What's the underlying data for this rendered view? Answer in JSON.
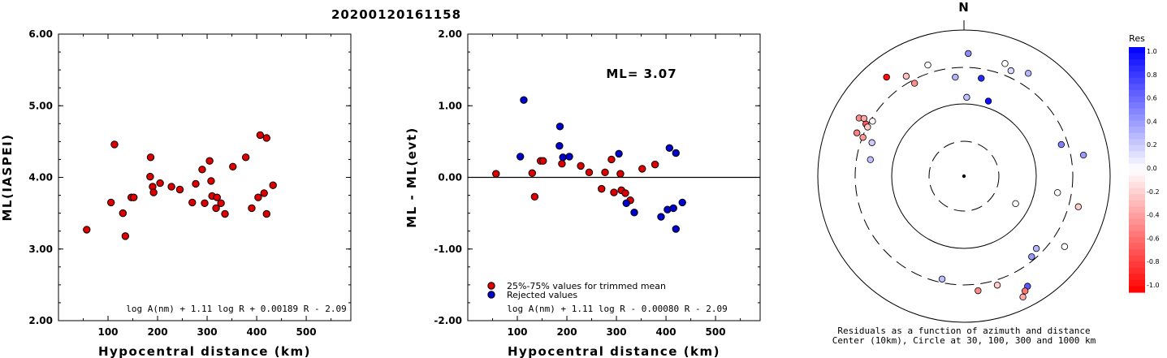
{
  "title": "20200120161158",
  "chart_data": [
    {
      "type": "scatter",
      "xlabel": "Hypocentral distance (km)",
      "ylabel": "ML(IASPEI)",
      "xlim": [
        0,
        590
      ],
      "ylim": [
        2.0,
        6.0
      ],
      "xticks": [
        "100",
        "200",
        "300",
        "400",
        "500"
      ],
      "yticks": [
        "2.00",
        "3.00",
        "4.00",
        "5.00",
        "6.00"
      ],
      "formula": "log A(nm) + 1.11 log R + 0.00189 R - 2.09",
      "points": [
        [
          57,
          3.27
        ],
        [
          106,
          3.65
        ],
        [
          113,
          4.46
        ],
        [
          130,
          3.5
        ],
        [
          135,
          3.18
        ],
        [
          147,
          3.72
        ],
        [
          152,
          3.72
        ],
        [
          185,
          4.01
        ],
        [
          186,
          4.28
        ],
        [
          190,
          3.87
        ],
        [
          192,
          3.79
        ],
        [
          205,
          3.92
        ],
        [
          228,
          3.87
        ],
        [
          245,
          3.83
        ],
        [
          270,
          3.65
        ],
        [
          277,
          3.91
        ],
        [
          290,
          4.11
        ],
        [
          295,
          3.64
        ],
        [
          305,
          4.23
        ],
        [
          308,
          3.95
        ],
        [
          310,
          3.74
        ],
        [
          318,
          3.57
        ],
        [
          320,
          3.72
        ],
        [
          328,
          3.64
        ],
        [
          336,
          3.49
        ],
        [
          352,
          4.15
        ],
        [
          378,
          4.28
        ],
        [
          390,
          3.57
        ],
        [
          403,
          3.72
        ],
        [
          407,
          4.59
        ],
        [
          415,
          3.78
        ],
        [
          420,
          3.49
        ],
        [
          420,
          4.55
        ],
        [
          433,
          3.89
        ]
      ]
    },
    {
      "type": "scatter",
      "xlabel": "Hypocentral distance (km)",
      "ylabel": "ML - ML(evt)",
      "xlim": [
        0,
        590
      ],
      "ylim": [
        -2.0,
        2.0
      ],
      "xticks": [
        "100",
        "200",
        "300",
        "400",
        "500"
      ],
      "yticks": [
        "-2.00",
        "-1.00",
        "0.00",
        "1.00",
        "2.00"
      ],
      "annotation": "ML= 3.07",
      "formula": "log A(nm) + 1.11 log R - 0.00080 R - 2.09",
      "legend": [
        {
          "label": "25%-75% values for trimmed mean",
          "color": "#dd0000"
        },
        {
          "label": "Rejected values",
          "color": "#0000cc"
        }
      ],
      "series": [
        {
          "name": "25%-75% values for trimmed mean",
          "color": "#dd0000",
          "points": [
            [
              57,
              0.05
            ],
            [
              130,
              0.06
            ],
            [
              135,
              -0.27
            ],
            [
              147,
              0.23
            ],
            [
              152,
              0.23
            ],
            [
              190,
              0.19
            ],
            [
              228,
              0.16
            ],
            [
              245,
              0.07
            ],
            [
              270,
              -0.16
            ],
            [
              277,
              0.07
            ],
            [
              290,
              0.25
            ],
            [
              295,
              -0.21
            ],
            [
              308,
              0.05
            ],
            [
              310,
              -0.18
            ],
            [
              318,
              -0.22
            ],
            [
              328,
              -0.32
            ],
            [
              352,
              0.12
            ],
            [
              378,
              0.18
            ]
          ]
        },
        {
          "name": "Rejected values",
          "color": "#0000cc",
          "points": [
            [
              106,
              0.29
            ],
            [
              113,
              1.08
            ],
            [
              185,
              0.44
            ],
            [
              186,
              0.71
            ],
            [
              192,
              0.28
            ],
            [
              205,
              0.29
            ],
            [
              305,
              0.33
            ],
            [
              320,
              -0.36
            ],
            [
              336,
              -0.49
            ],
            [
              390,
              -0.55
            ],
            [
              403,
              -0.45
            ],
            [
              407,
              0.41
            ],
            [
              415,
              -0.43
            ],
            [
              420,
              0.34
            ],
            [
              420,
              -0.72
            ],
            [
              433,
              -0.35
            ]
          ]
        }
      ]
    },
    {
      "type": "polar-scatter",
      "north_label": "N",
      "caption_line1": "Residuals as a function of azimuth and distance",
      "caption_line2": "Center (10km), Circle at 30, 100, 300 and 1000 km",
      "colorbar_title": "Res",
      "colorbar_ticks": [
        "1.0",
        "0.8",
        "0.6",
        "0.4",
        "0.2",
        "0.0",
        "-0.2",
        "-0.4",
        "-0.6",
        "-0.8",
        "-1.0"
      ],
      "stations": [
        {
          "az": 2,
          "r": 0.84,
          "res": 0.45
        },
        {
          "az": 10,
          "r": 0.68,
          "res": 0.85
        },
        {
          "az": 18,
          "r": 0.54,
          "res": 0.95
        },
        {
          "az": 24,
          "r": 0.79,
          "res": 0.15
        },
        {
          "az": 32,
          "r": 0.83,
          "res": 0.3
        },
        {
          "az": 20,
          "r": 0.82,
          "res": 0.0
        },
        {
          "az": -18,
          "r": 0.8,
          "res": 0.0
        },
        {
          "az": -5,
          "r": 0.68,
          "res": 0.3
        },
        {
          "az": 2,
          "r": 0.54,
          "res": 0.25
        },
        {
          "az": -38,
          "r": 0.86,
          "res": -0.95
        },
        {
          "az": -28,
          "r": 0.72,
          "res": -0.45
        },
        {
          "az": -30,
          "r": 0.79,
          "res": -0.25
        },
        {
          "az": -62,
          "r": 0.76,
          "res": -0.65
        },
        {
          "az": -61,
          "r": 0.82,
          "res": -0.45
        },
        {
          "az": -60,
          "r": 0.79,
          "res": -0.35
        },
        {
          "az": -63,
          "r": 0.74,
          "res": -0.2
        },
        {
          "az": -59,
          "r": 0.73,
          "res": -0.05
        },
        {
          "az": -68,
          "r": 0.79,
          "res": -0.5
        },
        {
          "az": -69,
          "r": 0.74,
          "res": -0.4
        },
        {
          "az": -70,
          "r": 0.67,
          "res": 0.2
        },
        {
          "az": -80,
          "r": 0.65,
          "res": 0.25
        },
        {
          "az": 72,
          "r": 0.7,
          "res": 0.5
        },
        {
          "az": 80,
          "r": 0.83,
          "res": 0.4
        },
        {
          "az": 105,
          "r": 0.81,
          "res": -0.2
        },
        {
          "az": 100,
          "r": 0.65,
          "res": 0.0
        },
        {
          "az": 118,
          "r": 0.4,
          "res": 0.0
        },
        {
          "az": 125,
          "r": 0.84,
          "res": 0.0
        },
        {
          "az": 135,
          "r": 0.7,
          "res": 0.3
        },
        {
          "az": 140,
          "r": 0.72,
          "res": 0.4
        },
        {
          "az": 150,
          "r": 0.87,
          "res": 0.65
        },
        {
          "az": 152,
          "r": 0.89,
          "res": -0.55
        },
        {
          "az": 154,
          "r": 0.92,
          "res": -0.35
        },
        {
          "az": 163,
          "r": 0.78,
          "res": -0.2
        },
        {
          "az": 173,
          "r": 0.79,
          "res": -0.45
        },
        {
          "az": 192,
          "r": 0.72,
          "res": 0.25
        }
      ]
    }
  ]
}
